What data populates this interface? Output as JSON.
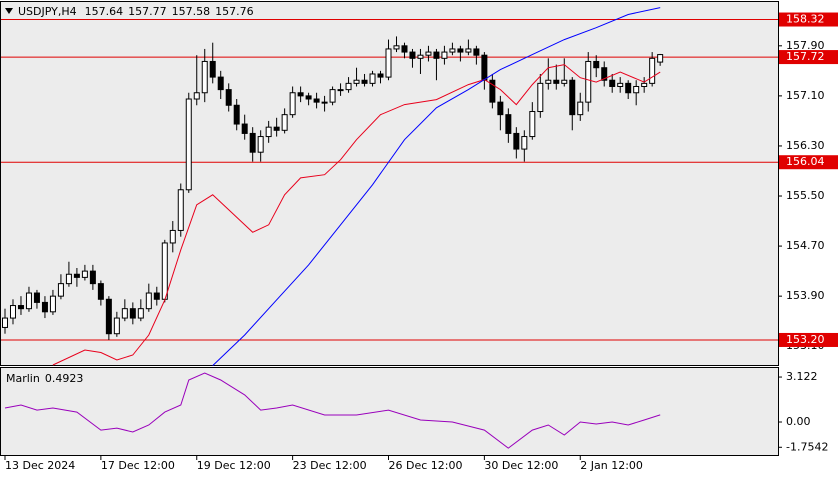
{
  "chart_data": [
    {
      "type": "candlestick",
      "title": "USDJPY,H4",
      "up_color": "#ffffff",
      "down_color": "#000000",
      "candles": [
        [
          153.4,
          153.7,
          153.3,
          153.55
        ],
        [
          153.55,
          153.85,
          153.45,
          153.75
        ],
        [
          153.75,
          153.9,
          153.6,
          153.7
        ],
        [
          153.7,
          154.05,
          153.65,
          153.95
        ],
        [
          153.95,
          154.0,
          153.7,
          153.8
        ],
        [
          153.8,
          153.9,
          153.55,
          153.65
        ],
        [
          153.65,
          154.0,
          153.6,
          153.9
        ],
        [
          153.9,
          154.25,
          153.85,
          154.1
        ],
        [
          154.1,
          154.45,
          154.05,
          154.25
        ],
        [
          154.25,
          154.35,
          154.05,
          154.2
        ],
        [
          154.2,
          154.4,
          154.15,
          154.3
        ],
        [
          154.3,
          154.4,
          154.0,
          154.1
        ],
        [
          154.1,
          154.15,
          153.75,
          153.85
        ],
        [
          153.85,
          153.9,
          153.2,
          153.3
        ],
        [
          153.3,
          153.65,
          153.25,
          153.55
        ],
        [
          153.55,
          153.85,
          153.5,
          153.7
        ],
        [
          153.7,
          153.8,
          153.45,
          153.55
        ],
        [
          153.55,
          153.85,
          153.5,
          153.7
        ],
        [
          153.7,
          154.1,
          153.65,
          153.95
        ],
        [
          153.95,
          154.05,
          153.75,
          153.85
        ],
        [
          153.85,
          154.8,
          153.8,
          154.75
        ],
        [
          154.75,
          155.1,
          154.6,
          154.95
        ],
        [
          154.95,
          155.7,
          154.85,
          155.6
        ],
        [
          155.6,
          157.15,
          155.55,
          157.05
        ],
        [
          157.05,
          157.75,
          156.95,
          157.15
        ],
        [
          157.15,
          157.85,
          157.0,
          157.65
        ],
        [
          157.65,
          157.95,
          157.3,
          157.4
        ],
        [
          157.4,
          157.5,
          157.05,
          157.2
        ],
        [
          157.2,
          157.3,
          156.85,
          156.95
        ],
        [
          156.95,
          157.05,
          156.55,
          156.65
        ],
        [
          156.65,
          156.8,
          156.4,
          156.5
        ],
        [
          156.5,
          156.6,
          156.05,
          156.2
        ],
        [
          156.2,
          156.55,
          156.05,
          156.45
        ],
        [
          156.45,
          156.7,
          156.35,
          156.6
        ],
        [
          156.6,
          156.75,
          156.45,
          156.55
        ],
        [
          156.55,
          156.9,
          156.5,
          156.8
        ],
        [
          156.8,
          157.25,
          156.75,
          157.15
        ],
        [
          157.15,
          157.25,
          157.0,
          157.1
        ],
        [
          157.1,
          157.15,
          156.95,
          157.05
        ],
        [
          157.05,
          157.15,
          156.9,
          157.0
        ],
        [
          157.0,
          157.1,
          156.85,
          157.0
        ],
        [
          157.0,
          157.25,
          156.95,
          157.2
        ],
        [
          157.2,
          157.3,
          157.1,
          157.2
        ],
        [
          157.2,
          157.4,
          157.15,
          157.3
        ],
        [
          157.3,
          157.55,
          157.25,
          157.35
        ],
        [
          157.35,
          157.45,
          157.25,
          157.3
        ],
        [
          157.3,
          157.5,
          157.25,
          157.45
        ],
        [
          157.45,
          157.5,
          157.3,
          157.4
        ],
        [
          157.4,
          158.0,
          157.35,
          157.85
        ],
        [
          157.85,
          158.05,
          157.8,
          157.9
        ],
        [
          157.9,
          157.95,
          157.7,
          157.8
        ],
        [
          157.8,
          157.85,
          157.55,
          157.7
        ],
        [
          157.7,
          157.85,
          157.45,
          157.75
        ],
        [
          157.75,
          157.9,
          157.65,
          157.8
        ],
        [
          157.8,
          157.85,
          157.35,
          157.7
        ],
        [
          157.7,
          157.9,
          157.6,
          157.8
        ],
        [
          157.8,
          157.95,
          157.75,
          157.85
        ],
        [
          157.85,
          157.9,
          157.65,
          157.8
        ],
        [
          157.8,
          158.0,
          157.75,
          157.85
        ],
        [
          157.85,
          157.9,
          157.6,
          157.75
        ],
        [
          157.75,
          157.8,
          157.2,
          157.35
        ],
        [
          157.35,
          157.45,
          156.9,
          157.0
        ],
        [
          157.0,
          157.1,
          156.55,
          156.8
        ],
        [
          156.8,
          156.9,
          156.35,
          156.5
        ],
        [
          156.5,
          156.6,
          156.1,
          156.25
        ],
        [
          156.25,
          156.55,
          156.05,
          156.45
        ],
        [
          156.45,
          157.0,
          156.4,
          156.85
        ],
        [
          156.85,
          157.45,
          156.75,
          157.3
        ],
        [
          157.3,
          157.7,
          157.2,
          157.35
        ],
        [
          157.35,
          157.6,
          157.2,
          157.3
        ],
        [
          157.3,
          157.7,
          157.25,
          157.35
        ],
        [
          157.35,
          157.4,
          156.55,
          156.8
        ],
        [
          156.8,
          157.15,
          156.7,
          157.0
        ],
        [
          157.0,
          157.8,
          156.85,
          157.65
        ],
        [
          157.65,
          157.75,
          157.4,
          157.55
        ],
        [
          157.55,
          157.65,
          157.25,
          157.35
        ],
        [
          157.35,
          157.45,
          157.15,
          157.25
        ],
        [
          157.25,
          157.4,
          157.15,
          157.3
        ],
        [
          157.3,
          157.35,
          157.05,
          157.15
        ],
        [
          157.15,
          157.35,
          156.95,
          157.25
        ],
        [
          157.25,
          157.4,
          157.15,
          157.3
        ],
        [
          157.3,
          157.8,
          157.25,
          157.7
        ],
        [
          157.64,
          157.77,
          157.58,
          157.76
        ]
      ],
      "series": [
        {
          "color": "#e8001c",
          "x": [
            6,
            10,
            12,
            14,
            16,
            18,
            20,
            22,
            24,
            26,
            28,
            31,
            33,
            35,
            37,
            40,
            42,
            44,
            47,
            50,
            54,
            58,
            60,
            62,
            64,
            66,
            68,
            70,
            72,
            74,
            77,
            80,
            82
          ],
          "values": [
            152.8,
            153.04,
            153.0,
            152.88,
            152.96,
            153.28,
            153.84,
            154.64,
            155.36,
            155.52,
            155.28,
            154.92,
            155.04,
            155.52,
            155.79,
            155.84,
            156.08,
            156.4,
            156.8,
            156.96,
            157.04,
            157.28,
            157.36,
            157.2,
            156.96,
            157.28,
            157.55,
            157.6,
            157.39,
            157.32,
            157.48,
            157.32,
            157.48
          ]
        },
        {
          "color": "#0000ff",
          "x": [
            26,
            30,
            34,
            38,
            42,
            46,
            50,
            54,
            58,
            62,
            66,
            70,
            74,
            78,
            82
          ],
          "values": [
            152.79,
            153.28,
            153.84,
            154.4,
            155.04,
            155.68,
            156.4,
            156.91,
            157.2,
            157.52,
            157.76,
            158.0,
            158.19,
            158.4,
            158.51
          ]
        }
      ],
      "levels": [
        158.32,
        157.72,
        156.04,
        {
          "value": 153.2,
          "label": "153.20"
        }
      ],
      "level_color": "#e00000",
      "xlim": [
        -0.5,
        96.75
      ],
      "ylim": [
        152.8,
        158.6
      ],
      "yticks": [
        {
          "value": 157.9,
          "label": "157.90"
        },
        {
          "value": 157.1,
          "label": "157.10"
        },
        {
          "value": 156.3,
          "label": "156.30"
        },
        {
          "value": 155.5,
          "label": "155.50"
        },
        {
          "value": 154.7,
          "label": "154.70"
        },
        {
          "value": 153.9,
          "label": "153.90"
        },
        {
          "value": 153.1,
          "label": "153.10"
        }
      ]
    },
    {
      "type": "line",
      "title": "Marlin",
      "series": [
        {
          "color": "#9900bb",
          "x": [
            0,
            2,
            4,
            6,
            9,
            12,
            14,
            16,
            18,
            20,
            22,
            23,
            25,
            27,
            30,
            32,
            34,
            36,
            40,
            44,
            48,
            52,
            56,
            60,
            63,
            66,
            68,
            70,
            72,
            74,
            76,
            78,
            80,
            82
          ],
          "values": [
            0.97,
            1.18,
            0.83,
            0.97,
            0.69,
            -0.56,
            -0.42,
            -0.69,
            -0.21,
            0.69,
            1.18,
            2.92,
            3.4,
            2.92,
            1.88,
            0.83,
            0.97,
            1.18,
            0.49,
            0.49,
            0.83,
            0.14,
            0,
            -0.56,
            -1.81,
            -0.56,
            -0.21,
            -0.9,
            0,
            -0.14,
            0,
            -0.21,
            0.14,
            0.4923
          ]
        }
      ],
      "xlim": [
        -0.5,
        96.75
      ],
      "ylim": [
        -2.29,
        3.75
      ],
      "yticks": [
        3.122,
        {
          "value": 0,
          "label": "0.00"
        },
        -1.7542
      ],
      "xticks": [
        {
          "value": 0,
          "label": "13 Dec 2024"
        },
        {
          "value": 12,
          "label": "17 Dec 12:00"
        },
        {
          "value": 24,
          "label": "19 Dec 12:00"
        },
        {
          "value": 36,
          "label": "23 Dec 12:00"
        },
        {
          "value": 48,
          "label": "26 Dec 12:00"
        },
        {
          "value": 60,
          "label": "30 Dec 12:00"
        },
        {
          "value": 72,
          "label": "2 Jan 12:00"
        }
      ]
    }
  ]
}
